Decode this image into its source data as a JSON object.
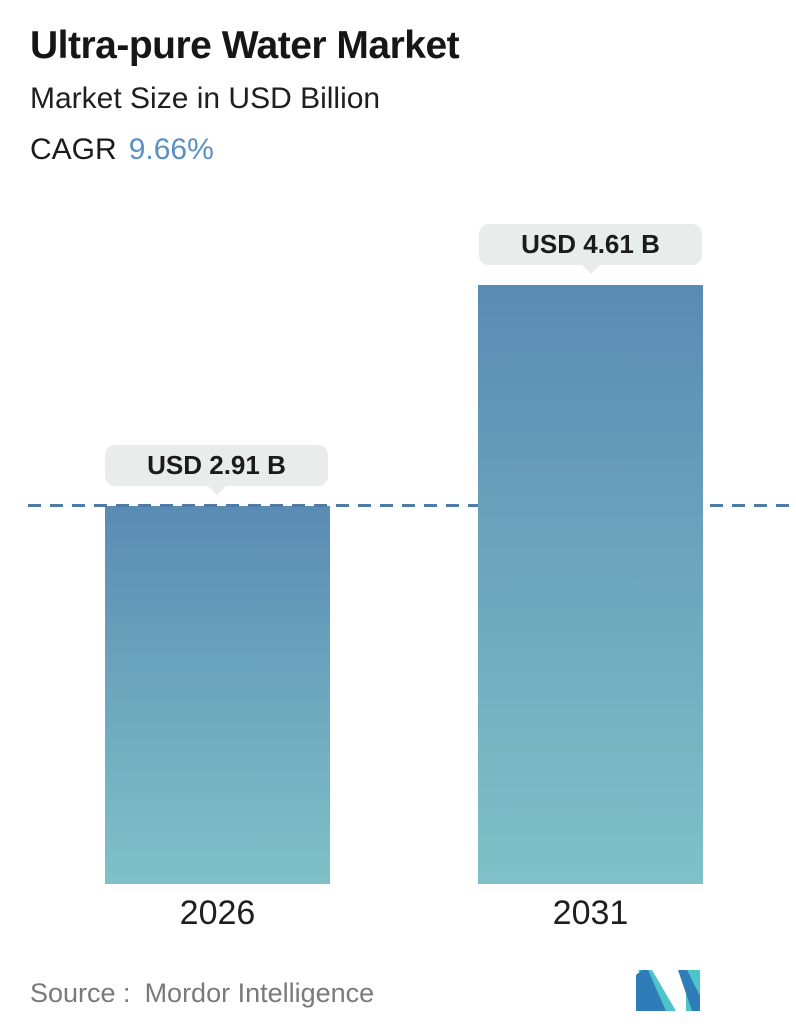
{
  "header": {
    "title": "Ultra-pure Water Market",
    "subtitle": "Market Size in USD Billion",
    "cagr_label": "CAGR",
    "cagr_value": "9.66%"
  },
  "chart_data": {
    "type": "bar",
    "categories": [
      "2026",
      "2031"
    ],
    "values": [
      2.91,
      4.61
    ],
    "value_labels": [
      "USD 2.91 B",
      "USD 4.61 B"
    ],
    "title": "Ultra-pure Water Market",
    "subtitle": "Market Size in USD Billion",
    "cagr": "9.66%",
    "ylim": [
      0,
      4.61
    ],
    "grid": false,
    "reference_line": {
      "value": 2.91,
      "style": "dashed",
      "color": "#4d7ca8"
    },
    "bar_gradient_top": "#5a8cb3",
    "bar_gradient_bottom": "#80c1c8",
    "tooltip_bg": "#e8edec"
  },
  "footer": {
    "source_label": "Source :",
    "source_value": "Mordor Intelligence"
  },
  "colors": {
    "accent_blue": "#5b90c3",
    "bar_top": "#5a8cb3",
    "bar_bottom": "#80c1c8",
    "dash": "#4d7ca8",
    "tooltip_bg": "#e8edec",
    "logo_blue": "#2e7cb8",
    "logo_teal": "#4cc4ca"
  }
}
